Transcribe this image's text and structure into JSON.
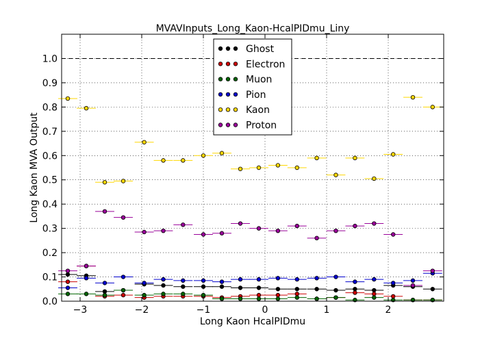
{
  "chart_data": {
    "type": "scatter",
    "title": "MVAVInputs_Long_Kaon-HcalPIDmu_Liny",
    "xlabel": "Long Kaon HcalPIDmu",
    "ylabel": "Long Kaon MVA Output",
    "xlim": [
      -3.3,
      2.9
    ],
    "ylim": [
      0.0,
      1.1
    ],
    "x_ticks": [
      -3,
      -2,
      -1,
      0,
      1,
      2
    ],
    "y_ticks": [
      0.0,
      0.1,
      0.2,
      0.3,
      0.4,
      0.5,
      0.6,
      0.7,
      0.8,
      0.9,
      1.0
    ],
    "x_tick_labels": [
      "−3",
      "−2",
      "−1",
      "0",
      "1",
      "2"
    ],
    "y_tick_labels": [
      "0.0",
      "0.1",
      "0.2",
      "0.3",
      "0.4",
      "0.5",
      "0.6",
      "0.7",
      "0.8",
      "0.9",
      "1.0"
    ],
    "grid": true,
    "reference_line_y": 1.0,
    "legend_position": "top-center",
    "bin_half_width": 0.155,
    "x": [
      -3.2,
      -2.9,
      -2.6,
      -2.3,
      -1.96,
      -1.65,
      -1.33,
      -1.0,
      -0.7,
      -0.4,
      -0.1,
      0.21,
      0.52,
      0.84,
      1.15,
      1.46,
      1.77,
      2.08,
      2.4,
      2.72
    ],
    "series": [
      {
        "name": "Ghost",
        "color": "#000000",
        "values": [
          0.11,
          0.105,
          0.04,
          0.045,
          0.07,
          0.065,
          0.06,
          0.06,
          0.06,
          0.055,
          0.055,
          0.05,
          0.05,
          0.05,
          0.045,
          0.05,
          0.045,
          0.065,
          0.06,
          0.05
        ]
      },
      {
        "name": "Electron",
        "color": "#cc0000",
        "values": [
          0.08,
          0.145,
          0.02,
          0.025,
          0.015,
          0.02,
          0.02,
          0.02,
          0.015,
          0.02,
          0.025,
          0.025,
          0.03,
          0.01,
          0.015,
          0.035,
          0.03,
          0.02,
          0.005,
          0.005
        ]
      },
      {
        "name": "Muon",
        "color": "#006400",
        "values": [
          0.03,
          0.03,
          0.025,
          0.045,
          0.025,
          0.03,
          0.03,
          0.025,
          0.01,
          0.01,
          0.01,
          0.01,
          0.015,
          0.01,
          0.015,
          0.005,
          0.015,
          0.005,
          0.005,
          0.005
        ]
      },
      {
        "name": "Pion",
        "color": "#0000cc",
        "values": [
          0.055,
          0.095,
          0.075,
          0.1,
          0.075,
          0.09,
          0.085,
          0.085,
          0.08,
          0.09,
          0.09,
          0.095,
          0.09,
          0.095,
          0.1,
          0.08,
          0.09,
          0.075,
          0.085,
          0.115
        ]
      },
      {
        "name": "Kaon",
        "color": "#ffd700",
        "values": [
          0.835,
          0.795,
          0.49,
          0.495,
          0.655,
          0.58,
          0.58,
          0.6,
          0.61,
          0.545,
          0.55,
          0.56,
          0.55,
          0.59,
          0.52,
          0.59,
          0.505,
          0.605,
          0.84,
          0.8
        ]
      },
      {
        "name": "Proton",
        "color": "#990099",
        "values": [
          0.125,
          0.145,
          0.37,
          0.345,
          0.285,
          0.29,
          0.315,
          0.275,
          0.28,
          0.32,
          0.3,
          0.29,
          0.31,
          0.26,
          0.29,
          0.31,
          0.32,
          0.275,
          0.065,
          0.125
        ]
      }
    ]
  }
}
